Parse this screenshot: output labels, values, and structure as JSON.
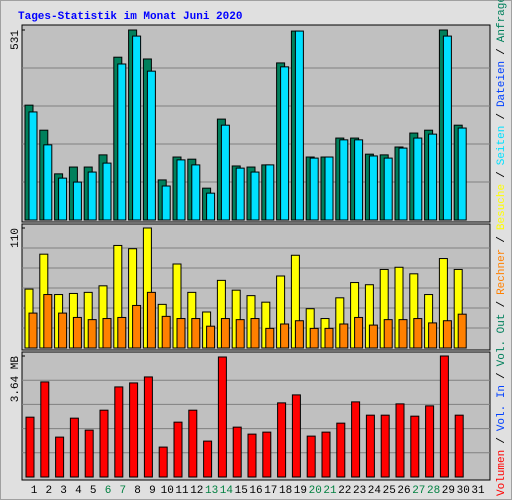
{
  "chart_data": [
    {
      "type": "bar",
      "title": "Tages-Statistik im Monat Juni 2020",
      "categories": [
        "1",
        "2",
        "3",
        "4",
        "5",
        "6",
        "7",
        "8",
        "9",
        "10",
        "11",
        "12",
        "13",
        "14",
        "15",
        "16",
        "17",
        "18",
        "19",
        "20",
        "21",
        "22",
        "23",
        "24",
        "25",
        "26",
        "27",
        "28",
        "29",
        "30",
        "31"
      ],
      "x_label_colors": [
        "#000000",
        "#000000",
        "#000000",
        "#000000",
        "#000000",
        "#008040",
        "#008040",
        "#000000",
        "#000000",
        "#000000",
        "#000000",
        "#000000",
        "#008040",
        "#008040",
        "#000000",
        "#000000",
        "#000000",
        "#000000",
        "#000000",
        "#008040",
        "#008040",
        "#000000",
        "#000000",
        "#000000",
        "#000000",
        "#000000",
        "#008040",
        "#008040",
        "#000000",
        "#000000",
        "#000000"
      ],
      "separator": "/",
      "ylim": [
        0,
        531
      ],
      "yticks": [
        531
      ],
      "grid_divisions": 5,
      "series": [
        {
          "name": "Anfragen",
          "color": "#00805c",
          "values": [
            321,
            251,
            129,
            148,
            148,
            182,
            455,
            531,
            450,
            112,
            176,
            170,
            89,
            282,
            151,
            148,
            154,
            439,
            528,
            176,
            176,
            229,
            229,
            184,
            182,
            204,
            243,
            251,
            531,
            265,
            null
          ]
        },
        {
          "name": "Dateien",
          "color": "#0040ff"
        },
        {
          "name": "Seiten",
          "color": "#00e0ff",
          "values": [
            302,
            210,
            117,
            106,
            134,
            159,
            436,
            514,
            416,
            95,
            168,
            154,
            75,
            265,
            145,
            134,
            154,
            428,
            528,
            173,
            176,
            224,
            224,
            179,
            173,
            201,
            229,
            240,
            514,
            257,
            null
          ]
        }
      ]
    },
    {
      "type": "bar",
      "ylim": [
        0,
        110
      ],
      "yticks": [
        110
      ],
      "grid_divisions": 6,
      "series": [
        {
          "name": "Besuche",
          "color": "#ffff00",
          "values": [
            54,
            86,
            49,
            50,
            51,
            57,
            94,
            91,
            110,
            40,
            77,
            51,
            33,
            62,
            53,
            48,
            42,
            66,
            85,
            36,
            27,
            46,
            60,
            58,
            72,
            74,
            68,
            49,
            82,
            72,
            null
          ]
        },
        {
          "name": "Rechner",
          "color": "#ff8000",
          "values": [
            32,
            49,
            32,
            28,
            26,
            27,
            28,
            39,
            51,
            29,
            27,
            27,
            20,
            27,
            26,
            27,
            18,
            22,
            25,
            18,
            18,
            22,
            28,
            21,
            26,
            26,
            27,
            23,
            25,
            31,
            null
          ]
        }
      ]
    },
    {
      "type": "bar",
      "ylim": [
        0,
        3.64
      ],
      "yticks": [
        {
          "value": 3.64,
          "label": "3.64 MB"
        }
      ],
      "grid_divisions": 5,
      "series": [
        {
          "name": "Volumen",
          "color": "#ff0000",
          "values": [
            1.8,
            2.86,
            1.2,
            1.77,
            1.41,
            2.01,
            2.71,
            2.83,
            3.01,
            0.9,
            1.65,
            2.01,
            1.08,
            3.61,
            1.5,
            1.29,
            1.35,
            2.23,
            2.47,
            1.23,
            1.35,
            1.62,
            2.26,
            1.86,
            1.86,
            2.2,
            1.83,
            2.14,
            3.64,
            1.86,
            null
          ]
        },
        {
          "name": "Vol. In",
          "color": "#0040ff"
        },
        {
          "name": "Vol. Out",
          "color": "#00805c"
        }
      ]
    }
  ]
}
